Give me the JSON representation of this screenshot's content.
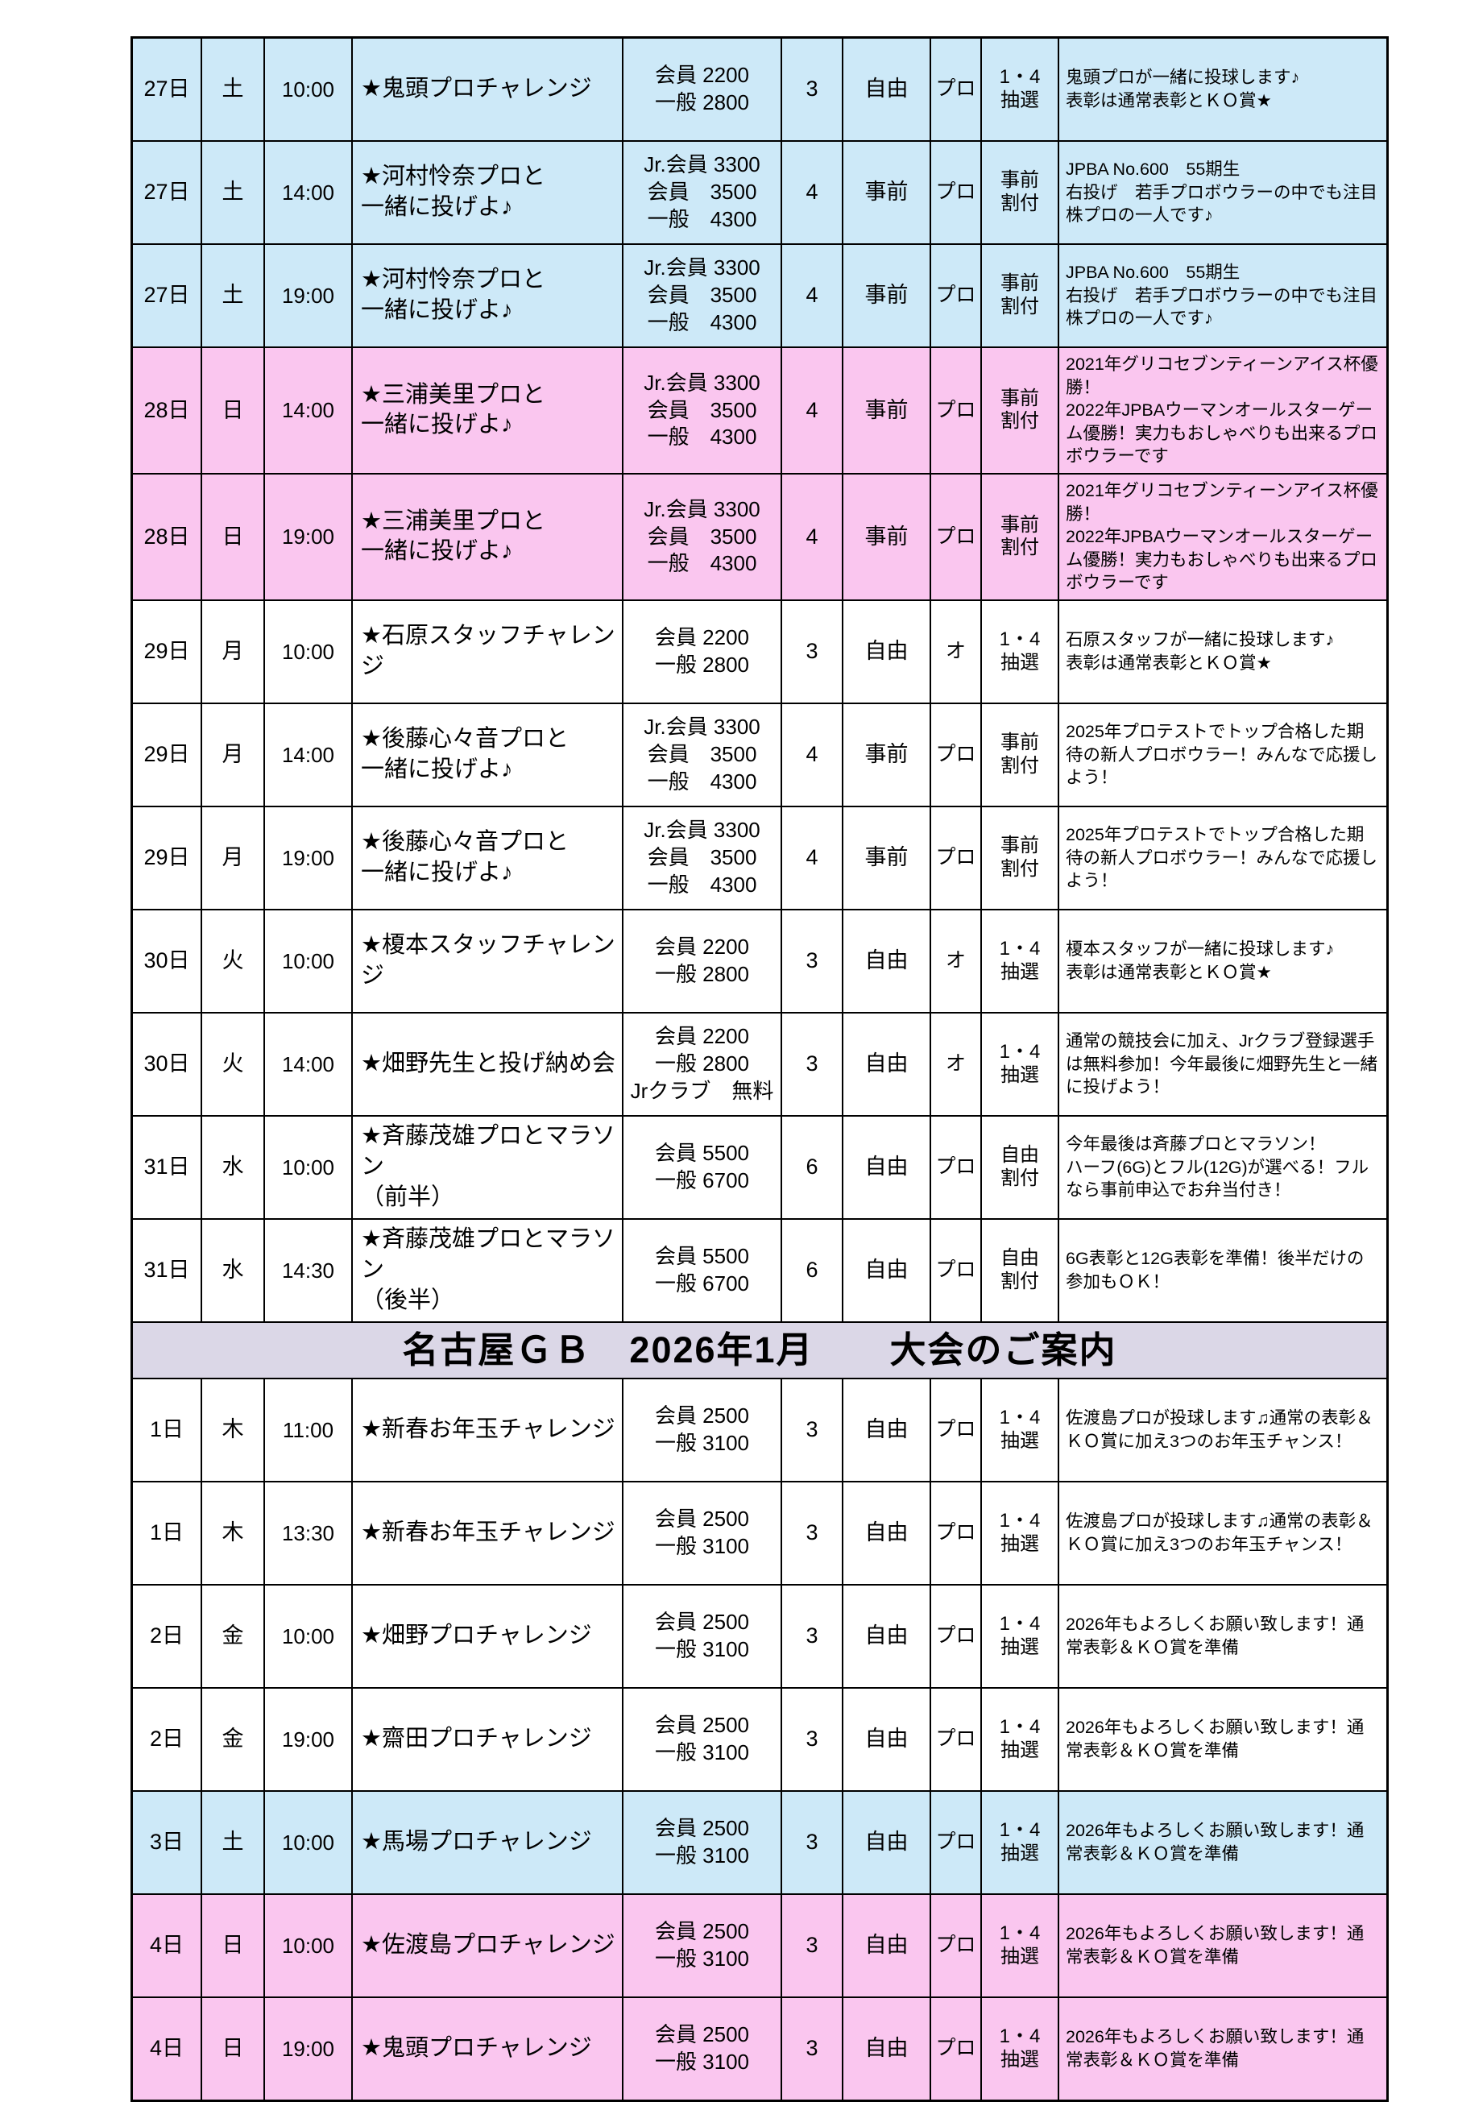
{
  "title_band": {
    "text": "名古屋ＧＢ　2026年1月　　大会のご案内",
    "bg": "#DBD7E7"
  },
  "colors": {
    "saturday": "#CDE9F8",
    "sunday": "#FAC6EF",
    "weekday": "#FFFFFF",
    "border": "#000000"
  },
  "december_rows": [
    {
      "date": "27日",
      "day": "土",
      "time": "10:00",
      "event": "★鬼頭プロチャレンジ",
      "price": "会員 2200\n一般 2800",
      "games": "3",
      "entry": "自由",
      "pro": "プロ",
      "slot": "1・4\n抽選",
      "desc": "鬼頭プロが一緒に投球します♪\n表彰は通常表彰とＫＯ賞★",
      "shade": "saturday"
    },
    {
      "date": "27日",
      "day": "土",
      "time": "14:00",
      "event": "★河村怜奈プロと\n一緒に投げよ♪",
      "price": "Jr.会員 3300\n会員　3500\n一般　4300",
      "games": "4",
      "entry": "事前",
      "pro": "プロ",
      "slot": "事前\n割付",
      "desc": "JPBA No.600　55期生\n右投げ　若手プロボウラーの中でも注目株プロの一人です♪",
      "shade": "saturday"
    },
    {
      "date": "27日",
      "day": "土",
      "time": "19:00",
      "event": "★河村怜奈プロと\n一緒に投げよ♪",
      "price": "Jr.会員 3300\n会員　3500\n一般　4300",
      "games": "4",
      "entry": "事前",
      "pro": "プロ",
      "slot": "事前\n割付",
      "desc": "JPBA No.600　55期生\n右投げ　若手プロボウラーの中でも注目株プロの一人です♪",
      "shade": "saturday"
    },
    {
      "date": "28日",
      "day": "日",
      "time": "14:00",
      "event": "★三浦美里プロと\n一緒に投げよ♪",
      "price": "Jr.会員 3300\n会員　3500\n一般　4300",
      "games": "4",
      "entry": "事前",
      "pro": "プロ",
      "slot": "事前\n割付",
      "desc": "2021年グリコセブンティーンアイス杯優勝！\n2022年JPBAウーマンオールスターゲーム優勝！実力もおしゃべりも出来るプロボウラーです",
      "shade": "sunday"
    },
    {
      "date": "28日",
      "day": "日",
      "time": "19:00",
      "event": "★三浦美里プロと\n一緒に投げよ♪",
      "price": "Jr.会員 3300\n会員　3500\n一般　4300",
      "games": "4",
      "entry": "事前",
      "pro": "プロ",
      "slot": "事前\n割付",
      "desc": "2021年グリコセブンティーンアイス杯優勝！\n2022年JPBAウーマンオールスターゲーム優勝！実力もおしゃべりも出来るプロボウラーです",
      "shade": "sunday"
    },
    {
      "date": "29日",
      "day": "月",
      "time": "10:00",
      "event": "★石原スタッフチャレンジ",
      "price": "会員 2200\n一般 2800",
      "games": "3",
      "entry": "自由",
      "pro": "オ",
      "slot": "1・4\n抽選",
      "desc": "石原スタッフが一緒に投球します♪\n表彰は通常表彰とＫＯ賞★",
      "shade": "weekday"
    },
    {
      "date": "29日",
      "day": "月",
      "time": "14:00",
      "event": "★後藤心々音プロと\n一緒に投げよ♪",
      "price": "Jr.会員 3300\n会員　3500\n一般　4300",
      "games": "4",
      "entry": "事前",
      "pro": "プロ",
      "slot": "事前\n割付",
      "desc": "2025年プロテストでトップ合格した期待の新人プロボウラー！みんなで応援しよう！",
      "shade": "weekday"
    },
    {
      "date": "29日",
      "day": "月",
      "time": "19:00",
      "event": "★後藤心々音プロと\n一緒に投げよ♪",
      "price": "Jr.会員 3300\n会員　3500\n一般　4300",
      "games": "4",
      "entry": "事前",
      "pro": "プロ",
      "slot": "事前\n割付",
      "desc": "2025年プロテストでトップ合格した期待の新人プロボウラー！みんなで応援しよう！",
      "shade": "weekday"
    },
    {
      "date": "30日",
      "day": "火",
      "time": "10:00",
      "event": "★榎本スタッフチャレンジ",
      "price": "会員 2200\n一般 2800",
      "games": "3",
      "entry": "自由",
      "pro": "オ",
      "slot": "1・4\n抽選",
      "desc": "榎本スタッフが一緒に投球します♪\n表彰は通常表彰とＫＯ賞★",
      "shade": "weekday"
    },
    {
      "date": "30日",
      "day": "火",
      "time": "14:00",
      "event": "★畑野先生と投げ納め会",
      "price": "会員 2200\n一般 2800\nJrクラブ　無料",
      "games": "3",
      "entry": "自由",
      "pro": "オ",
      "slot": "1・4\n抽選",
      "desc": "通常の競技会に加え、Jrクラブ登録選手は無料参加！今年最後に畑野先生と一緒に投げよう！",
      "shade": "weekday"
    },
    {
      "date": "31日",
      "day": "水",
      "time": "10:00",
      "event": "★斉藤茂雄プロとマラソン\n（前半）",
      "price": "会員 5500\n一般 6700",
      "games": "6",
      "entry": "自由",
      "pro": "プロ",
      "slot": "自由\n割付",
      "desc": "今年最後は斉藤プロとマラソン！\nハーフ(6G)とフル(12G)が選べる！フルなら事前申込でお弁当付き！",
      "shade": "weekday"
    },
    {
      "date": "31日",
      "day": "水",
      "time": "14:30",
      "event": "★斉藤茂雄プロとマラソン\n（後半）",
      "price": "会員 5500\n一般 6700",
      "games": "6",
      "entry": "自由",
      "pro": "プロ",
      "slot": "自由\n割付",
      "desc": "6G表彰と12G表彰を準備！後半だけの参加もＯＫ！",
      "shade": "weekday"
    }
  ],
  "january_rows": [
    {
      "date": "1日",
      "day": "木",
      "time": "11:00",
      "event": "★新春お年玉チャレンジ",
      "price": "会員 2500\n一般 3100",
      "games": "3",
      "entry": "自由",
      "pro": "プロ",
      "slot": "1・4\n抽選",
      "desc": "佐渡島プロが投球します♫通常の表彰＆ＫＯ賞に加え3つのお年玉チャンス！",
      "shade": "weekday"
    },
    {
      "date": "1日",
      "day": "木",
      "time": "13:30",
      "event": "★新春お年玉チャレンジ",
      "price": "会員 2500\n一般 3100",
      "games": "3",
      "entry": "自由",
      "pro": "プロ",
      "slot": "1・4\n抽選",
      "desc": "佐渡島プロが投球します♫通常の表彰＆ＫＯ賞に加え3つのお年玉チャンス！",
      "shade": "weekday"
    },
    {
      "date": "2日",
      "day": "金",
      "time": "10:00",
      "event": "★畑野プロチャレンジ",
      "price": "会員 2500\n一般 3100",
      "games": "3",
      "entry": "自由",
      "pro": "プロ",
      "slot": "1・4\n抽選",
      "desc": "2026年もよろしくお願い致します！通常表彰＆ＫＯ賞を準備",
      "shade": "weekday"
    },
    {
      "date": "2日",
      "day": "金",
      "time": "19:00",
      "event": "★齋田プロチャレンジ",
      "price": "会員 2500\n一般 3100",
      "games": "3",
      "entry": "自由",
      "pro": "プロ",
      "slot": "1・4\n抽選",
      "desc": "2026年もよろしくお願い致します！通常表彰＆ＫＯ賞を準備",
      "shade": "weekday"
    },
    {
      "date": "3日",
      "day": "土",
      "time": "10:00",
      "event": "★馬場プロチャレンジ",
      "price": "会員 2500\n一般 3100",
      "games": "3",
      "entry": "自由",
      "pro": "プロ",
      "slot": "1・4\n抽選",
      "desc": "2026年もよろしくお願い致します！通常表彰＆ＫＯ賞を準備",
      "shade": "saturday"
    },
    {
      "date": "4日",
      "day": "日",
      "time": "10:00",
      "event": "★佐渡島プロチャレンジ",
      "price": "会員 2500\n一般 3100",
      "games": "3",
      "entry": "自由",
      "pro": "プロ",
      "slot": "1・4\n抽選",
      "desc": "2026年もよろしくお願い致します！通常表彰＆ＫＯ賞を準備",
      "shade": "sunday"
    },
    {
      "date": "4日",
      "day": "日",
      "time": "19:00",
      "event": "★鬼頭プロチャレンジ",
      "price": "会員 2500\n一般 3100",
      "games": "3",
      "entry": "自由",
      "pro": "プロ",
      "slot": "1・4\n抽選",
      "desc": "2026年もよろしくお願い致します！通常表彰＆ＫＯ賞を準備",
      "shade": "sunday"
    }
  ]
}
